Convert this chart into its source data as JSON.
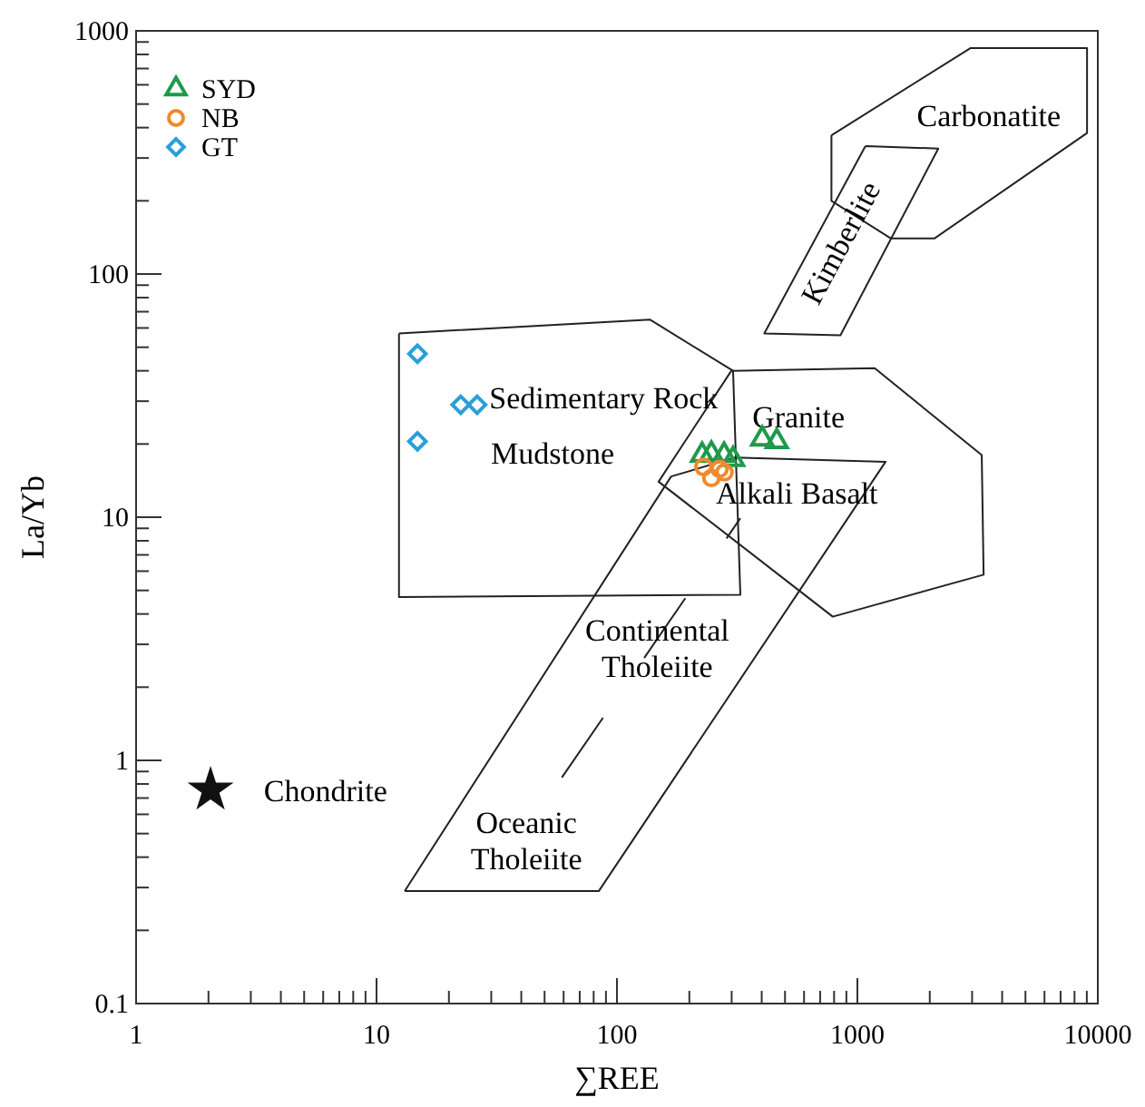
{
  "chart_data": {
    "type": "scatter",
    "xlabel": "∑REE",
    "ylabel": "La/Yb",
    "log": "xy",
    "xlim": [
      1,
      10000
    ],
    "ylim": [
      0.1,
      1000
    ],
    "xticks": [
      1,
      {
        "value": 2,
        "label": null
      },
      {
        "value": 3,
        "label": null
      },
      {
        "value": 4,
        "label": null
      },
      {
        "value": 5,
        "label": null
      },
      {
        "value": 6,
        "label": null
      },
      {
        "value": 7,
        "label": null
      },
      {
        "value": 8,
        "label": null
      },
      {
        "value": 9,
        "label": null
      },
      10,
      {
        "value": 20,
        "label": null
      },
      {
        "value": 30,
        "label": null
      },
      {
        "value": 40,
        "label": null
      },
      {
        "value": 50,
        "label": null
      },
      {
        "value": 60,
        "label": null
      },
      {
        "value": 70,
        "label": null
      },
      {
        "value": 80,
        "label": null
      },
      {
        "value": 90,
        "label": null
      },
      100,
      {
        "value": 200,
        "label": null
      },
      {
        "value": 300,
        "label": null
      },
      {
        "value": 400,
        "label": null
      },
      {
        "value": 500,
        "label": null
      },
      {
        "value": 600,
        "label": null
      },
      {
        "value": 700,
        "label": null
      },
      {
        "value": 800,
        "label": null
      },
      {
        "value": 900,
        "label": null
      },
      1000,
      {
        "value": 2000,
        "label": null
      },
      {
        "value": 3000,
        "label": null
      },
      {
        "value": 4000,
        "label": null
      },
      {
        "value": 5000,
        "label": null
      },
      {
        "value": 6000,
        "label": null
      },
      {
        "value": 7000,
        "label": null
      },
      {
        "value": 8000,
        "label": null
      },
      {
        "value": 9000,
        "label": null
      },
      10000
    ],
    "yticks": [
      0.1,
      {
        "value": 0.2,
        "label": null
      },
      {
        "value": 0.3,
        "label": null
      },
      {
        "value": 0.4,
        "label": null
      },
      {
        "value": 0.5,
        "label": null
      },
      {
        "value": 0.6,
        "label": null
      },
      {
        "value": 0.7,
        "label": null
      },
      {
        "value": 0.8,
        "label": null
      },
      {
        "value": 0.9,
        "label": null
      },
      1,
      {
        "value": 2,
        "label": null
      },
      {
        "value": 3,
        "label": null
      },
      {
        "value": 4,
        "label": null
      },
      {
        "value": 5,
        "label": null
      },
      {
        "value": 6,
        "label": null
      },
      {
        "value": 7,
        "label": null
      },
      {
        "value": 8,
        "label": null
      },
      {
        "value": 9,
        "label": null
      },
      10,
      {
        "value": 20,
        "label": null
      },
      {
        "value": 30,
        "label": null
      },
      {
        "value": 40,
        "label": null
      },
      {
        "value": 50,
        "label": null
      },
      {
        "value": 60,
        "label": null
      },
      {
        "value": 70,
        "label": null
      },
      {
        "value": 80,
        "label": null
      },
      {
        "value": 90,
        "label": null
      },
      100,
      {
        "value": 200,
        "label": null
      },
      {
        "value": 300,
        "label": null
      },
      {
        "value": 400,
        "label": null
      },
      {
        "value": 500,
        "label": null
      },
      {
        "value": 600,
        "label": null
      },
      {
        "value": 700,
        "label": null
      },
      {
        "value": 800,
        "label": null
      },
      {
        "value": 900,
        "label": null
      },
      1000
    ],
    "grid": false,
    "legend": "top left",
    "series": [
      {
        "name": "SYD",
        "color": "#1f9a4b",
        "marker": "triangle",
        "x": [
          226,
          247,
          279,
          304,
          402,
          462
        ],
        "values": [
          18,
          18.2,
          18,
          17.3,
          21,
          20.5
        ]
      },
      {
        "name": "NB",
        "color": "#ef8a2e",
        "marker": "circle",
        "x": [
          229,
          247,
          267,
          280
        ],
        "values": [
          16.1,
          14.5,
          15.8,
          15.3
        ]
      },
      {
        "name": "GT",
        "color": "#2a9fd8",
        "marker": "diamond",
        "x": [
          14.8,
          22.4,
          26.2,
          14.8
        ],
        "values": [
          47,
          29,
          29,
          20.5
        ]
      },
      {
        "color": "#111111",
        "marker": "star",
        "x": [
          2.04
        ],
        "values": [
          0.755
        ]
      }
    ],
    "annotations": [
      "Carbonatite",
      "Kimberlite",
      "Sedimentary Rock",
      "Mudstone",
      "Granite",
      "Alkali Basalt",
      "Continental\nTholeiite",
      "Oceanic\nTholeiite",
      "Chondrite"
    ]
  }
}
